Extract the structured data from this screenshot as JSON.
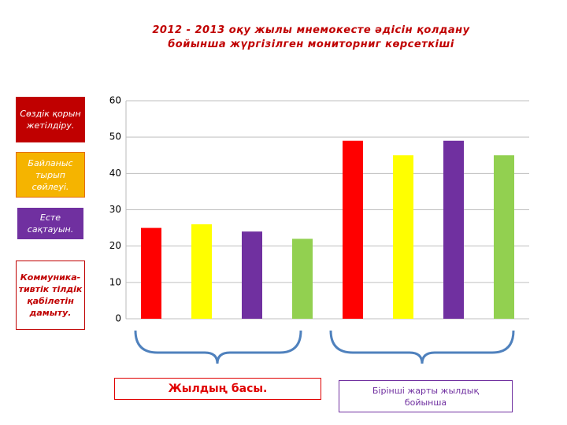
{
  "chart_data": {
    "type": "bar",
    "title": "2012 - 2013 оқу жылы мнемокесте әдісін қолдану бойынша жүргізілген мониторниг көрсеткіші",
    "categories": [
      "Жылдың басы.",
      "Бірінші жарты жылдық бойынша"
    ],
    "series": [
      {
        "name": "Сөздік қорын жетілдіру.",
        "color": "#ff0000",
        "values": [
          25,
          49
        ]
      },
      {
        "name": "Байланыс тырып сөйлеуі.",
        "color": "#ffff00",
        "values": [
          26,
          45
        ]
      },
      {
        "name": "Есте сақтауын.",
        "color": "#7030a0",
        "values": [
          24,
          49
        ]
      },
      {
        "name": "Коммуника-тивтік тілдік қабілетін дамыту.",
        "color": "#92d050",
        "values": [
          22,
          45
        ]
      }
    ],
    "ylim": [
      0,
      60
    ],
    "yticks": [
      0,
      10,
      20,
      30,
      40,
      50,
      60
    ],
    "grid": true
  }
}
